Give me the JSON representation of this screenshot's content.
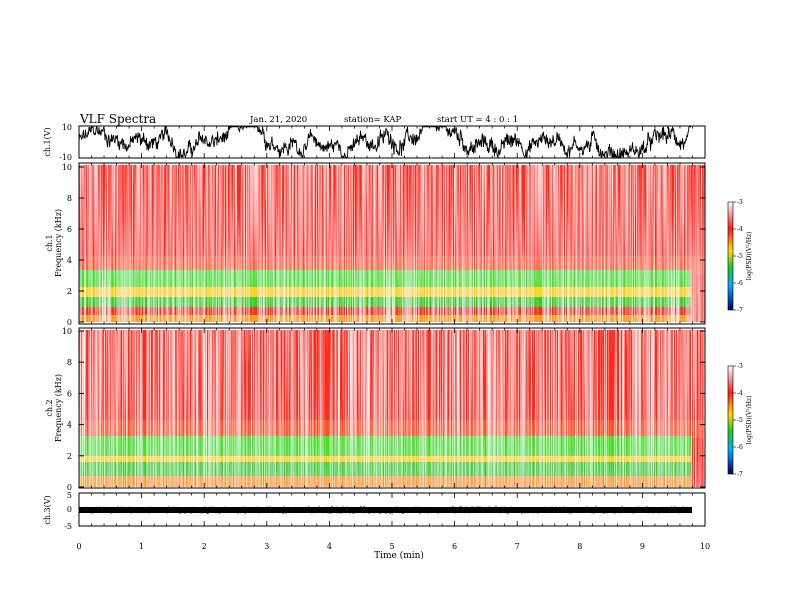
{
  "header": {
    "title": "VLF Spectra",
    "date": "Jan. 21, 2020",
    "station": "station= KAP",
    "start": "start UT =  4 : 0 : 1"
  },
  "colors": {
    "waveform": "#000000",
    "spectrogram_background": "#ff2a1a",
    "spectrogram_low_band": "#3ddc1e"
  },
  "chart_data": [
    {
      "type": "line",
      "panel": "ch1-waveform",
      "ylabel": "ch.1(V)",
      "ylim": [
        -10,
        10
      ],
      "yticks": [
        "10",
        "-10"
      ],
      "xlim": [
        0,
        10
      ],
      "series": [
        {
          "values_description_range": [
            -7,
            8
          ]
        }
      ]
    },
    {
      "type": "heatmap",
      "panel": "ch1-spectrogram",
      "ylabel": "ch.1\nFrequency (kHz)",
      "ylabel_lines": [
        "ch.1",
        "Frequency (kHz)"
      ],
      "ylim": [
        0,
        10
      ],
      "yticks": [
        "0",
        "2",
        "4",
        "6",
        "8",
        "10"
      ],
      "xlim": [
        0,
        10
      ],
      "colorbar": {
        "label": "log(PSD)(V²/Hz)",
        "range": [
          -7,
          -3
        ],
        "ticks": [
          "-3",
          "-4",
          "-5",
          "-6",
          "-7"
        ]
      }
    },
    {
      "type": "heatmap",
      "panel": "ch2-spectrogram",
      "ylabel": "ch.2\nFrequency (kHz)",
      "ylabel_lines": [
        "ch.2",
        "Frequency (kHz)"
      ],
      "ylim": [
        0,
        10
      ],
      "yticks": [
        "0",
        "2",
        "4",
        "6",
        "8",
        "10"
      ],
      "xlim": [
        0,
        10
      ],
      "colorbar": {
        "label": "log(PSD)(V²/Hz)",
        "range": [
          -7,
          -3
        ],
        "ticks": [
          "-3",
          "-4",
          "-5",
          "-6",
          "-7"
        ]
      }
    },
    {
      "type": "line",
      "panel": "ch3-waveform",
      "ylabel": "ch.3(V)",
      "ylim": [
        -5,
        5
      ],
      "yticks": [
        "5",
        "0",
        "-5"
      ],
      "xlim": [
        0,
        10
      ],
      "xlabel": "Time (min)",
      "xticks": [
        "0",
        "1",
        "2",
        "3",
        "4",
        "5",
        "6",
        "7",
        "8",
        "9",
        "10"
      ],
      "series": [
        {
          "values_description_range": [
            -0.6,
            0.6
          ]
        }
      ]
    }
  ]
}
